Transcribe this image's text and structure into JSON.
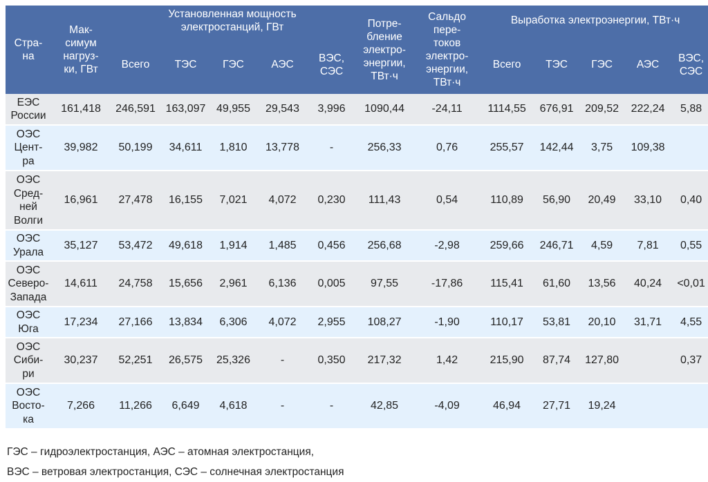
{
  "table": {
    "headers": {
      "country": "Стра-\nна",
      "max_load": "Мак-\nсимум\nнагруз-\nки, ГВт",
      "installed_group": "Установленная мощность\nэлектростанций, ГВт",
      "consumption": "Потре-\nбление\nэлектро-\nэнергии,\nТВт·ч",
      "balance": "Сальдо\nпере-\nтоков\nэлектро-\nэнергии,\nТВт·ч",
      "generation_group": "Выработка электроэнергии, ТВт·ч",
      "installed_sub": [
        "Всего",
        "ТЭС",
        "ГЭС",
        "АЭС",
        "ВЭС,\nСЭС"
      ],
      "generation_sub": [
        "Всего",
        "ТЭС",
        "ГЭС",
        "АЭС",
        "ВЭС,\nСЭС"
      ]
    },
    "rows": [
      {
        "name": "ЕЭС\nРоссии",
        "max_load": "161,418",
        "inst_total": "246,591",
        "inst_tes": "163,097",
        "inst_ges": "49,955",
        "inst_aes": "29,543",
        "inst_ves": "3,996",
        "consumption": "1090,44",
        "balance": "-24,11",
        "gen_total": "1114,55",
        "gen_tes": "676,91",
        "gen_ges": "209,52",
        "gen_aes": "222,24",
        "gen_ves": "5,88"
      },
      {
        "name": "ОЭС\nЦент-\nра",
        "max_load": "39,982",
        "inst_total": "50,199",
        "inst_tes": "34,611",
        "inst_ges": "1,810",
        "inst_aes": "13,778",
        "inst_ves": "-",
        "consumption": "256,33",
        "balance": "0,76",
        "gen_total": "255,57",
        "gen_tes": "142,44",
        "gen_ges": "3,75",
        "gen_aes": "109,38",
        "gen_ves": ""
      },
      {
        "name": "ОЭС\nСред-\nней\nВолги",
        "max_load": "16,961",
        "inst_total": "27,478",
        "inst_tes": "16,155",
        "inst_ges": "7,021",
        "inst_aes": "4,072",
        "inst_ves": "0,230",
        "consumption": "111,43",
        "balance": "0,54",
        "gen_total": "110,89",
        "gen_tes": "56,90",
        "gen_ges": "20,49",
        "gen_aes": "33,10",
        "gen_ves": "0,40"
      },
      {
        "name": "ОЭС\nУрала",
        "max_load": "35,127",
        "inst_total": "53,472",
        "inst_tes": "49,618",
        "inst_ges": "1,914",
        "inst_aes": "1,485",
        "inst_ves": "0,456",
        "consumption": "256,68",
        "balance": "-2,98",
        "gen_total": "259,66",
        "gen_tes": "246,71",
        "gen_ges": "4,59",
        "gen_aes": "7,81",
        "gen_ves": "0,55"
      },
      {
        "name": "ОЭС\nСеверо-\nЗапада",
        "max_load": "14,611",
        "inst_total": "24,758",
        "inst_tes": "15,656",
        "inst_ges": "2,961",
        "inst_aes": "6,136",
        "inst_ves": "0,005",
        "consumption": "97,55",
        "balance": "-17,86",
        "gen_total": "115,41",
        "gen_tes": "61,60",
        "gen_ges": "13,56",
        "gen_aes": "40,24",
        "gen_ves": "<0,01"
      },
      {
        "name": "ОЭС\nЮга",
        "max_load": "17,234",
        "inst_total": "27,166",
        "inst_tes": "13,834",
        "inst_ges": "6,306",
        "inst_aes": "4,072",
        "inst_ves": "2,955",
        "consumption": "108,27",
        "balance": "-1,90",
        "gen_total": "110,17",
        "gen_tes": "53,81",
        "gen_ges": "20,10",
        "gen_aes": "31,71",
        "gen_ves": "4,55"
      },
      {
        "name": "ОЭС\nСиби-\nри",
        "max_load": "30,237",
        "inst_total": "52,251",
        "inst_tes": "26,575",
        "inst_ges": "25,326",
        "inst_aes": "-",
        "inst_ves": "0,350",
        "consumption": "217,32",
        "balance": "1,42",
        "gen_total": "215,90",
        "gen_tes": "87,74",
        "gen_ges": "127,80",
        "gen_aes": "",
        "gen_ves": "0,37"
      },
      {
        "name": "ОЭС\nВосто-\nка",
        "max_load": "7,266",
        "inst_total": "11,266",
        "inst_tes": "6,649",
        "inst_ges": "4,618",
        "inst_aes": "-",
        "inst_ves": "-",
        "consumption": "42,85",
        "balance": "-4,09",
        "gen_total": "46,94",
        "gen_tes": "27,71",
        "gen_ges": "19,24",
        "gen_aes": "",
        "gen_ves": ""
      }
    ]
  },
  "notes": [
    "ГЭС – гидроэлектростанция, АЭС – атомная электростанция,",
    "ВЭС – ветровая электростанция, СЭС – солнечная электростанция"
  ]
}
